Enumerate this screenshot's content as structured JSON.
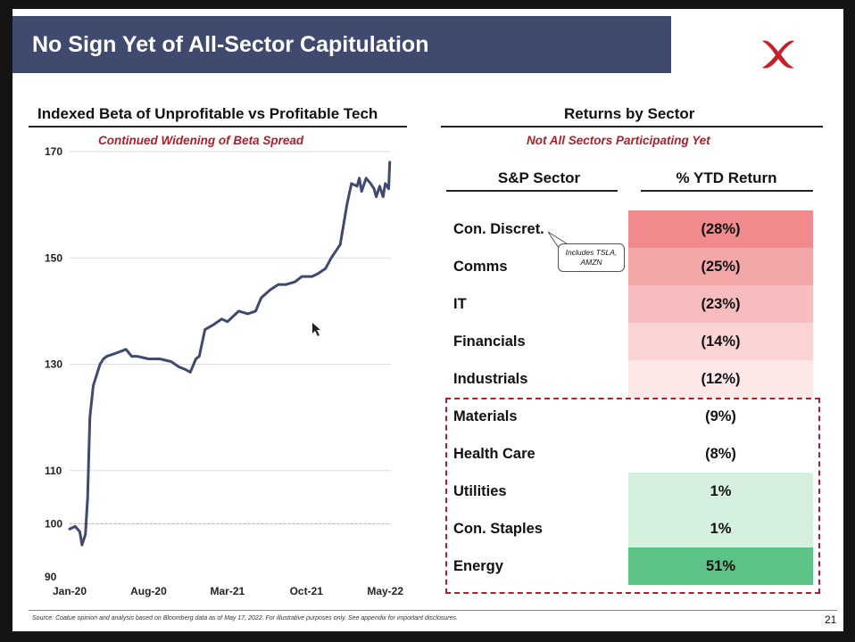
{
  "slide": {
    "title": "No Sign Yet of All-Sector Capitulation",
    "logo_icon": "red-x-logo",
    "brand_color": "#b01e2a",
    "title_bar_color": "#3f4a6e",
    "page_number": "21",
    "footnote": "Source: Coatue opinion and analysis based on Bloomberg data as of May 17, 2022. For illustrative purposes only. See appendix for important disclosures."
  },
  "left_panel": {
    "title": "Indexed Beta of Unprofitable vs Profitable Tech",
    "subtitle": "Continued Widening of Beta Spread"
  },
  "right_panel": {
    "title": "Returns by Sector",
    "subtitle": "Not All Sectors Participating Yet",
    "col_sector": "S&P Sector",
    "col_return": "% YTD Return",
    "callout": "Includes TSLA, AMZN",
    "rows": [
      {
        "sector": "Con. Discret.",
        "value": "(28%)",
        "color": "#f08a8c"
      },
      {
        "sector": "Comms",
        "value": "(25%)",
        "color": "#f4a7a8"
      },
      {
        "sector": "IT",
        "value": "(23%)",
        "color": "#f7bcbd"
      },
      {
        "sector": "Financials",
        "value": "(14%)",
        "color": "#fad3d4"
      },
      {
        "sector": "Industrials",
        "value": "(12%)",
        "color": "#fde7e7"
      },
      {
        "sector": "Materials",
        "value": "(9%)",
        "color": "#ffffff"
      },
      {
        "sector": "Health Care",
        "value": "(8%)",
        "color": "#ffffff"
      },
      {
        "sector": "Utilities",
        "value": "1%",
        "color": "#d6f0e0"
      },
      {
        "sector": "Con. Staples",
        "value": "1%",
        "color": "#d6f0e0"
      },
      {
        "sector": "Energy",
        "value": "51%",
        "color": "#5cc285"
      }
    ]
  },
  "chart_data": {
    "type": "line",
    "title": "Indexed Beta of Unprofitable vs Profitable Tech",
    "subtitle": "Continued Widening of Beta Spread",
    "xlabel": "",
    "ylabel": "",
    "ylim": [
      90,
      170
    ],
    "yticks": [
      90,
      100,
      110,
      130,
      150,
      170
    ],
    "xlim": [
      0,
      28.5
    ],
    "xticks": [
      0,
      7,
      14,
      21,
      28
    ],
    "xtick_labels": [
      "Jan-20",
      "Aug-20",
      "Mar-21",
      "Oct-21",
      "May-22"
    ],
    "reference_line": 100,
    "grid": true,
    "series": [
      {
        "name": "Indexed Beta",
        "color": "#3f4a6e",
        "x": [
          0,
          0.5,
          0.9,
          1.1,
          1.4,
          1.6,
          1.8,
          2.1,
          2.4,
          2.7,
          3,
          3.3,
          4,
          5,
          5.5,
          6,
          7,
          8,
          9,
          9.7,
          10.3,
          10.7,
          11.2,
          11.5,
          12,
          12.8,
          13.5,
          14,
          15,
          15.8,
          16.5,
          17,
          17.8,
          18.5,
          19.2,
          20,
          20.6,
          21.5,
          22,
          22.7,
          23.2,
          24,
          24.6,
          25,
          25.5,
          25.7,
          25.9,
          26.3,
          26.7,
          27,
          27.2,
          27.5,
          27.8,
          28,
          28.3,
          28.4
        ],
        "y": [
          99,
          99.5,
          98.5,
          96,
          98,
          105,
          120,
          126,
          128,
          130,
          131,
          131.5,
          132,
          132.8,
          131.5,
          131.5,
          131,
          131,
          130.5,
          129.5,
          129,
          128.5,
          131,
          131.5,
          136.5,
          137.5,
          138.5,
          138,
          140,
          139.5,
          140,
          142.5,
          144,
          145,
          145,
          145.5,
          146.5,
          146.5,
          147,
          148,
          150,
          152.5,
          160,
          164,
          163.5,
          165,
          162.5,
          165,
          164,
          163,
          161.5,
          163.5,
          161.5,
          164,
          163,
          168
        ]
      }
    ]
  }
}
